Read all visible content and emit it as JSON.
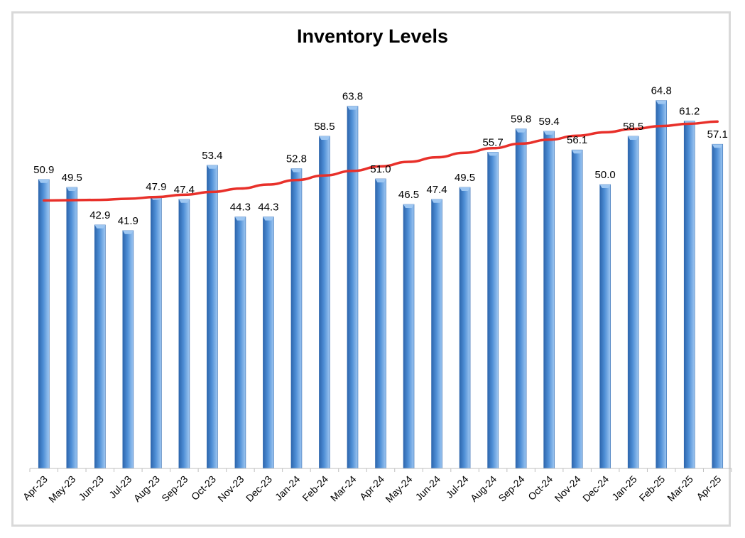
{
  "chart_data": {
    "type": "bar",
    "title": "Inventory Levels",
    "xlabel": "",
    "ylabel": "",
    "ylim": [
      0,
      70
    ],
    "grid": false,
    "legend": "none",
    "categories": [
      "Apr-23",
      "May-23",
      "Jun-23",
      "Jul-23",
      "Aug-23",
      "Sep-23",
      "Oct-23",
      "Nov-23",
      "Dec-23",
      "Jan-24",
      "Feb-24",
      "Mar-24",
      "Apr-24",
      "May-24",
      "Jun-24",
      "Jul-24",
      "Aug-24",
      "Sep-24",
      "Oct-24",
      "Nov-24",
      "Dec-24",
      "Jan-25",
      "Feb-25",
      "Mar-25",
      "Apr-25"
    ],
    "values": [
      50.9,
      49.5,
      42.9,
      41.9,
      47.9,
      47.4,
      53.4,
      44.3,
      44.3,
      52.8,
      58.5,
      63.8,
      51.0,
      46.5,
      47.4,
      49.5,
      55.7,
      59.8,
      59.4,
      56.1,
      50.0,
      58.5,
      64.8,
      61.2,
      57.1
    ],
    "data_labels": [
      "50.9",
      "49.5",
      "42.9",
      "41.9",
      "47.9",
      "47.4",
      "53.4",
      "44.3",
      "44.3",
      "52.8",
      "58.5",
      "63.8",
      "51.0",
      "46.5",
      "47.4",
      "49.5",
      "55.7",
      "59.8",
      "59.4",
      "56.1",
      "50.0",
      "58.5",
      "64.8",
      "61.2",
      "57.1"
    ],
    "trendline": {
      "type": "polynomial",
      "color": "#e8302a",
      "values": [
        47.2,
        47.25,
        47.3,
        47.5,
        47.8,
        48.2,
        48.7,
        49.3,
        50.0,
        50.8,
        51.6,
        52.4,
        53.2,
        54.0,
        54.8,
        55.6,
        56.4,
        57.2,
        57.9,
        58.6,
        59.2,
        59.8,
        60.3,
        60.7,
        61.1
      ]
    },
    "colors": {
      "bar": "#4f8fd6",
      "bar_dark": "#2d66ad",
      "bar_light": "#9ec7f2"
    }
  }
}
